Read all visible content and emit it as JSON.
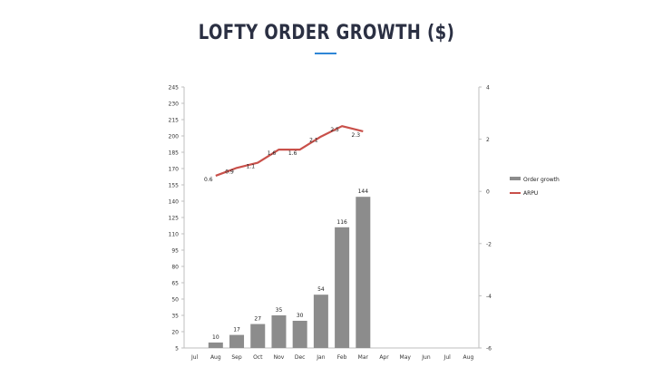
{
  "title": "LOFTY ORDER GROWTH ($)",
  "colors": {
    "bar": "#8c8c8c",
    "line": "#c9504a",
    "title": "#2b3043",
    "accent": "#2f86d6"
  },
  "chart_data": {
    "type": "bar",
    "categories": [
      "Jul",
      "Aug",
      "Sep",
      "Oct",
      "Nov",
      "Dec",
      "Jan",
      "Feb",
      "Mar",
      "Apr",
      "May",
      "Jun",
      "Jul",
      "Aug"
    ],
    "series": [
      {
        "name": "Order growth",
        "type": "bar",
        "axis": "left",
        "values": [
          null,
          10,
          17,
          27,
          35,
          30,
          54,
          116,
          144,
          null,
          null,
          null,
          null,
          null
        ]
      },
      {
        "name": "ARPU",
        "type": "line",
        "axis": "right",
        "values": [
          null,
          0.6,
          0.9,
          1.1,
          1.6,
          1.6,
          2.1,
          2.5,
          2.3,
          null,
          null,
          null,
          null,
          null
        ]
      }
    ],
    "y_left": {
      "ylim": [
        5,
        245
      ],
      "ticks": [
        5,
        20,
        35,
        50,
        65,
        80,
        95,
        110,
        125,
        140,
        155,
        170,
        185,
        200,
        215,
        230,
        245
      ]
    },
    "y_right": {
      "ylim": [
        -6,
        4
      ],
      "ticks": [
        -6,
        -4,
        -2,
        0,
        2,
        4
      ]
    },
    "legend_position": "right",
    "grid": false
  }
}
